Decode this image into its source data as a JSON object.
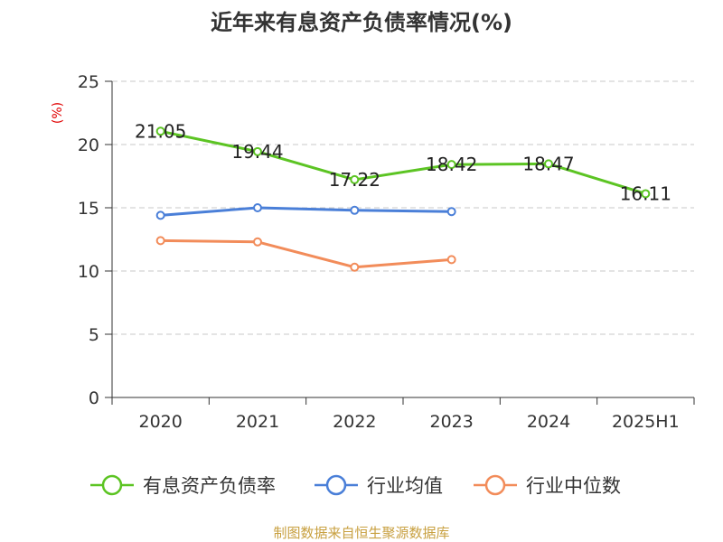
{
  "chart_data": {
    "type": "line",
    "title": "近年来有息资产负债率情况(%)",
    "ylabel": "(%)",
    "xlabel": "",
    "categories": [
      "2020",
      "2021",
      "2022",
      "2023",
      "2024",
      "2025H1"
    ],
    "yticks": [
      "0",
      "5",
      "10",
      "15",
      "20",
      "25"
    ],
    "ylim": [
      0,
      25
    ],
    "grid": true,
    "legend_position": "bottom",
    "series": [
      {
        "name": "有息资产负债率",
        "color": "#5cc423",
        "values": [
          21.05,
          19.44,
          17.22,
          18.42,
          18.47,
          16.11
        ],
        "labels": [
          "21.05",
          "19.44",
          "17.22",
          "18.42",
          "18.47",
          "16.11"
        ]
      },
      {
        "name": "行业均值",
        "color": "#4a7fd8",
        "values": [
          14.4,
          15.0,
          14.8,
          14.7,
          null,
          null
        ]
      },
      {
        "name": "行业中位数",
        "color": "#f28c5a",
        "values": [
          12.4,
          12.3,
          10.3,
          10.9,
          null,
          null
        ]
      }
    ]
  },
  "source_text": "制图数据来自恒生聚源数据库"
}
